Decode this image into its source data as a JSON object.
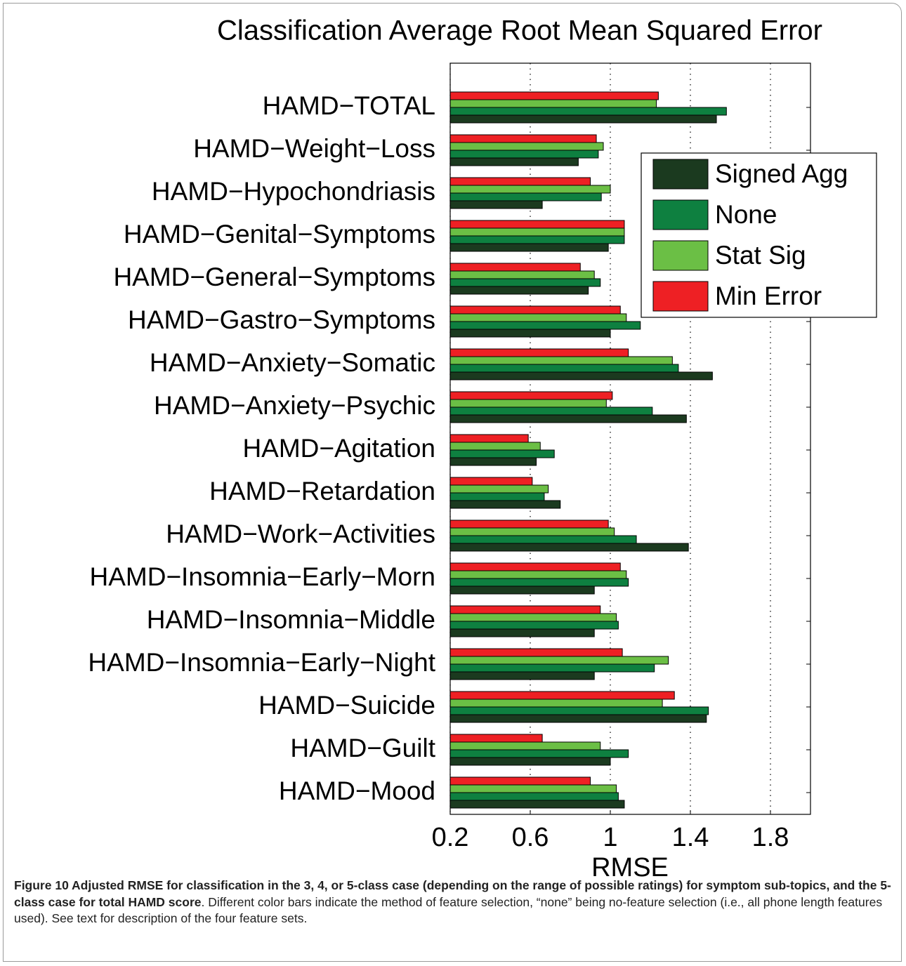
{
  "chart_data": {
    "type": "barh",
    "title": "Classification Average Root Mean Squared Error",
    "xlabel": "RMSE",
    "categories": [
      "HAMD−TOTAL",
      "HAMD−Weight−Loss",
      "HAMD−Hypochondriasis",
      "HAMD−Genital−Symptoms",
      "HAMD−General−Symptoms",
      "HAMD−Gastro−Symptoms",
      "HAMD−Anxiety−Somatic",
      "HAMD−Anxiety−Psychic",
      "HAMD−Agitation",
      "HAMD−Retardation",
      "HAMD−Work−Activities",
      "HAMD−Insomnia−Early−Morn",
      "HAMD−Insomnia−Middle",
      "HAMD−Insomnia−Early−Night",
      "HAMD−Suicide",
      "HAMD−Guilt",
      "HAMD−Mood"
    ],
    "series": [
      {
        "name": "Signed Agg",
        "color": "#1b3a1f",
        "values": [
          1.53,
          0.84,
          0.66,
          0.99,
          0.89,
          1.0,
          1.51,
          1.38,
          0.63,
          0.75,
          1.39,
          0.92,
          0.92,
          0.92,
          1.48,
          1.0,
          1.07
        ]
      },
      {
        "name": "None",
        "color": "#0e8040",
        "values": [
          1.58,
          0.94,
          0.955,
          1.07,
          0.95,
          1.15,
          1.34,
          1.21,
          0.72,
          0.67,
          1.13,
          1.09,
          1.04,
          1.22,
          1.49,
          1.09,
          1.04
        ]
      },
      {
        "name": "Stat Sig",
        "color": "#6bbf45",
        "values": [
          1.23,
          0.965,
          1.0,
          1.07,
          0.92,
          1.08,
          1.31,
          0.98,
          0.65,
          0.69,
          1.02,
          1.08,
          1.03,
          1.29,
          1.26,
          0.95,
          1.03
        ]
      },
      {
        "name": "Min Error",
        "color": "#ee2024",
        "values": [
          1.24,
          0.93,
          0.9,
          1.07,
          0.85,
          1.05,
          1.09,
          1.01,
          0.59,
          0.61,
          0.99,
          1.05,
          0.95,
          1.06,
          1.32,
          0.66,
          0.9
        ]
      }
    ],
    "xlim": [
      0.2,
      2.0
    ],
    "xticks": [
      0.2,
      0.6,
      1,
      1.4,
      1.8
    ],
    "grid": true,
    "legend": "upper right"
  },
  "caption": {
    "bold": "Figure 10 Adjusted RMSE for classification in the 3, 4, or 5-class case (depending on the range of possible ratings) for symptom sub-topics, and the 5-class case for total HAMD score",
    "text": ". Different color bars indicate the method of feature selection, “none” being no-feature selection (i.e., all phone length features used). See text for description of the four feature sets."
  }
}
